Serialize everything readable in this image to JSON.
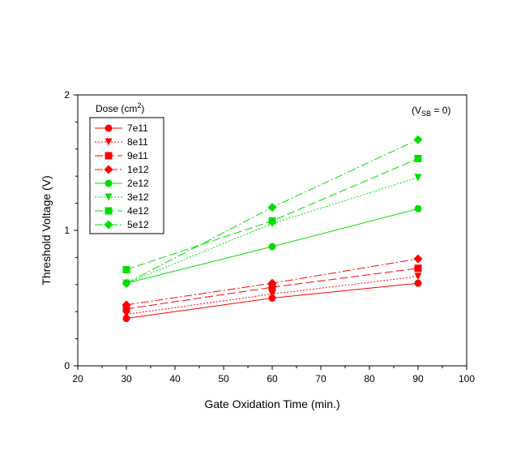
{
  "chart_data": {
    "type": "line",
    "xlabel": "Gate Oxidation Time (min.)",
    "ylabel": "Threshold Voltage (V)",
    "xlim": [
      20,
      100
    ],
    "ylim": [
      0,
      2
    ],
    "xticks": [
      20,
      30,
      40,
      50,
      60,
      70,
      80,
      90,
      100
    ],
    "yticks": [
      0,
      1,
      2
    ],
    "grid": false,
    "legend_title": "Dose (cm²)",
    "legend_title_main": "Dose (cm",
    "legend_title_sup": "2",
    "legend_title_end": ")",
    "legend_position": "top-left",
    "annotation": "(VSB = 0)",
    "annotation_parts": {
      "open": "(V",
      "sub": "SB",
      "rest": " = 0)"
    },
    "x": [
      30,
      60,
      90
    ],
    "series": [
      {
        "name": "7e11",
        "color": "#ff0000",
        "marker": "circle",
        "dash": "solid",
        "values": [
          0.35,
          0.5,
          0.61
        ]
      },
      {
        "name": "8e11",
        "color": "#ff0000",
        "marker": "triangle",
        "dash": "dotted",
        "values": [
          0.38,
          0.53,
          0.66
        ]
      },
      {
        "name": "9e11",
        "color": "#ff0000",
        "marker": "square",
        "dash": "dashed",
        "values": [
          0.42,
          0.58,
          0.72
        ]
      },
      {
        "name": "1e12",
        "color": "#ff0000",
        "marker": "diamond",
        "dash": "dashdot",
        "values": [
          0.45,
          0.61,
          0.79
        ]
      },
      {
        "name": "2e12",
        "color": "#00dd00",
        "marker": "circle",
        "dash": "solid",
        "values": [
          0.61,
          0.88,
          1.16
        ]
      },
      {
        "name": "3e12",
        "color": "#00dd00",
        "marker": "triangle",
        "dash": "dotted",
        "values": [
          0.61,
          1.05,
          1.39
        ]
      },
      {
        "name": "4e12",
        "color": "#00dd00",
        "marker": "square",
        "dash": "dashed",
        "values": [
          0.71,
          1.07,
          1.53
        ]
      },
      {
        "name": "5e12",
        "color": "#00dd00",
        "marker": "diamond",
        "dash": "dashdot",
        "values": [
          0.61,
          1.17,
          1.67
        ]
      }
    ]
  }
}
